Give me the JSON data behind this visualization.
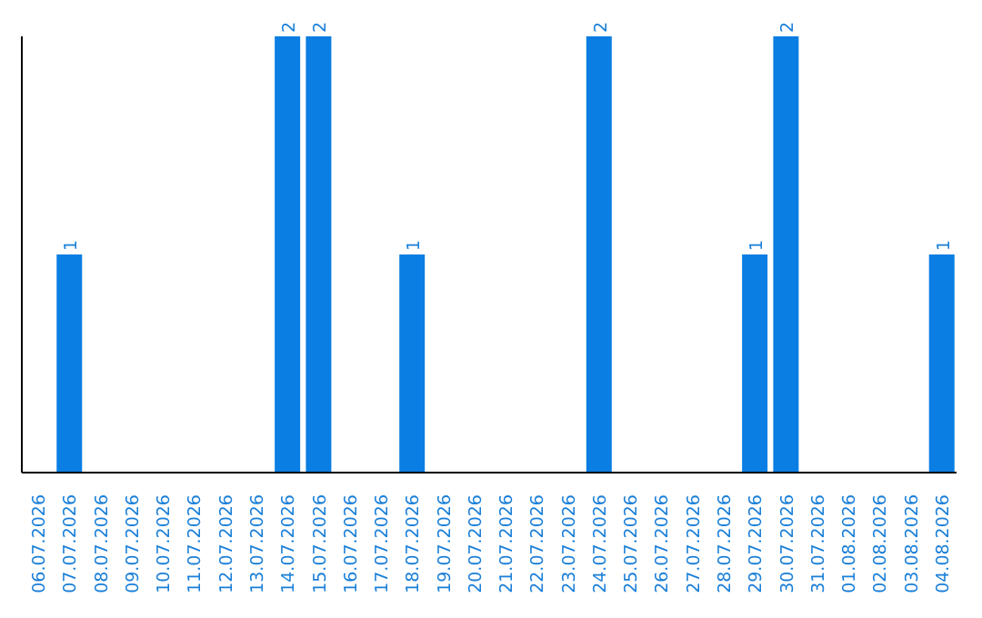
{
  "chart_data": {
    "type": "bar",
    "categories": [
      "06.07.2026",
      "07.07.2026",
      "08.07.2026",
      "09.07.2026",
      "10.07.2026",
      "11.07.2026",
      "12.07.2026",
      "13.07.2026",
      "14.07.2026",
      "15.07.2026",
      "16.07.2026",
      "17.07.2026",
      "18.07.2026",
      "19.07.2026",
      "20.07.2026",
      "21.07.2026",
      "22.07.2026",
      "23.07.2026",
      "24.07.2026",
      "25.07.2026",
      "26.07.2026",
      "27.07.2026",
      "28.07.2026",
      "29.07.2026",
      "30.07.2026",
      "31.07.2026",
      "01.08.2026",
      "02.08.2026",
      "03.08.2026",
      "04.08.2026"
    ],
    "values": [
      0,
      1,
      0,
      0,
      0,
      0,
      0,
      0,
      2,
      2,
      0,
      0,
      1,
      0,
      0,
      0,
      0,
      0,
      2,
      0,
      0,
      0,
      0,
      1,
      2,
      0,
      0,
      0,
      0,
      1
    ],
    "value_labels": [
      null,
      "1",
      null,
      null,
      null,
      null,
      null,
      null,
      "2",
      "2",
      null,
      null,
      "1",
      null,
      null,
      null,
      null,
      null,
      "2",
      null,
      null,
      null,
      null,
      "1",
      "2",
      null,
      null,
      null,
      null,
      "1"
    ],
    "color": "#0a7ee3",
    "grid": false,
    "legend": false
  }
}
